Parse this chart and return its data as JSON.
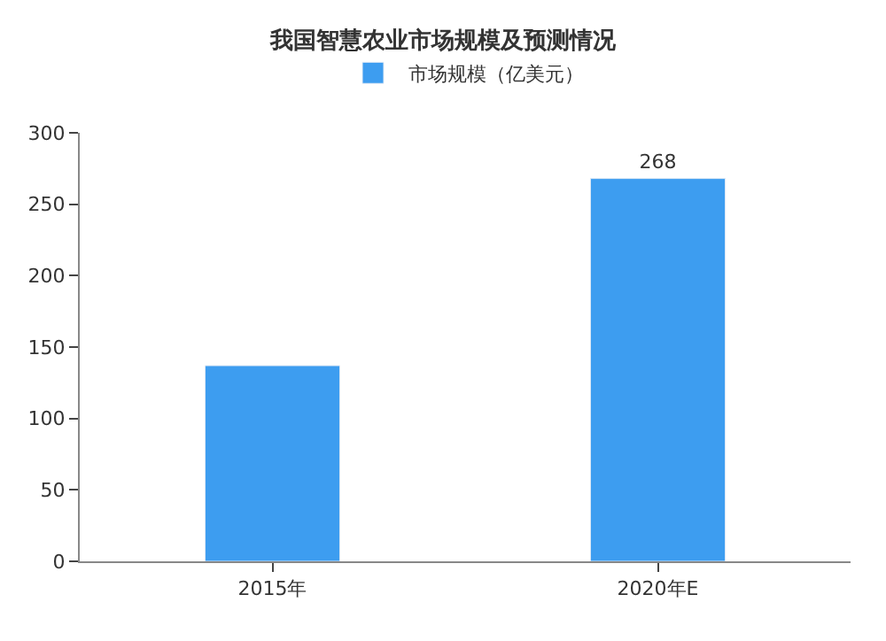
{
  "chart_data": {
    "type": "bar",
    "title": "我国智慧农业市场规模及预测情况",
    "categories": [
      "2015年",
      "2020年E"
    ],
    "series": [
      {
        "name": "市场规模（亿美元）",
        "color": "#3d9df0",
        "values": [
          137,
          268
        ],
        "value_labels": [
          null,
          "268"
        ]
      }
    ],
    "ylim": [
      0,
      300
    ],
    "yticks": [
      0,
      50,
      100,
      150,
      200,
      250,
      300
    ],
    "grid": false,
    "legend": "top"
  }
}
